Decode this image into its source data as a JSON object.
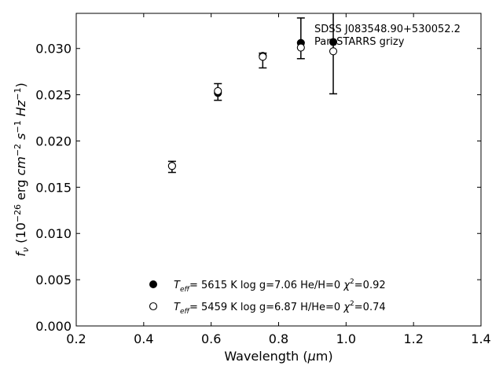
{
  "chart_data": {
    "type": "scatter",
    "title": "",
    "xlabel": "Wavelength (μm)",
    "ylabel": "fν (10⁻²⁶ erg cm⁻² s⁻¹ Hz⁻¹)",
    "xlim": [
      0.2,
      1.4
    ],
    "ylim": [
      0.0,
      0.0338
    ],
    "xticks": [
      0.2,
      0.4,
      0.6,
      0.8,
      1.0,
      1.2,
      1.4
    ],
    "xtick_labels": [
      "0.2",
      "0.4",
      "0.6",
      "0.8",
      "1.0",
      "1.2",
      "1.4"
    ],
    "yticks": [
      0.0,
      0.005,
      0.01,
      0.015,
      0.02,
      0.025,
      0.03
    ],
    "ytick_labels": [
      "0.000",
      "0.005",
      "0.010",
      "0.015",
      "0.020",
      "0.025",
      "0.030"
    ],
    "grid": false,
    "annotations": [
      "SDSS J083548.90+530052.2",
      "Pan-STARRS grizy"
    ],
    "observed": {
      "x": [
        0.484,
        0.62,
        0.753,
        0.866,
        0.962
      ],
      "y": [
        0.0172,
        0.0253,
        0.0287,
        0.0311,
        0.0299
      ],
      "yerr": [
        0.0006,
        0.0009,
        0.0008,
        0.0022,
        0.0048
      ]
    },
    "series": [
      {
        "name": "Teff= 5615 K log g=7.06 He/H=0 χ²=0.92",
        "marker": "filled-circle",
        "x": [
          0.484,
          0.62,
          0.753,
          0.866,
          0.962
        ],
        "y": [
          0.0173,
          0.0252,
          0.0292,
          0.0306,
          0.0307
        ]
      },
      {
        "name": "Teff= 5459 K log g=6.87 H/He=0 χ²=0.74",
        "marker": "open-circle",
        "x": [
          0.484,
          0.62,
          0.753,
          0.866,
          0.962
        ],
        "y": [
          0.0173,
          0.0254,
          0.0291,
          0.0301,
          0.0297
        ]
      }
    ],
    "legend": [
      {
        "marker": "filled-circle",
        "teff": "5615 K",
        "logg": "log g=7.06",
        "comp": "He/H=0",
        "chi2": "=0.92"
      },
      {
        "marker": "open-circle",
        "teff": "5459 K",
        "logg": "log g=6.87",
        "comp": "H/He=0",
        "chi2": "=0.74"
      }
    ],
    "legend_position": "bottom-center"
  }
}
